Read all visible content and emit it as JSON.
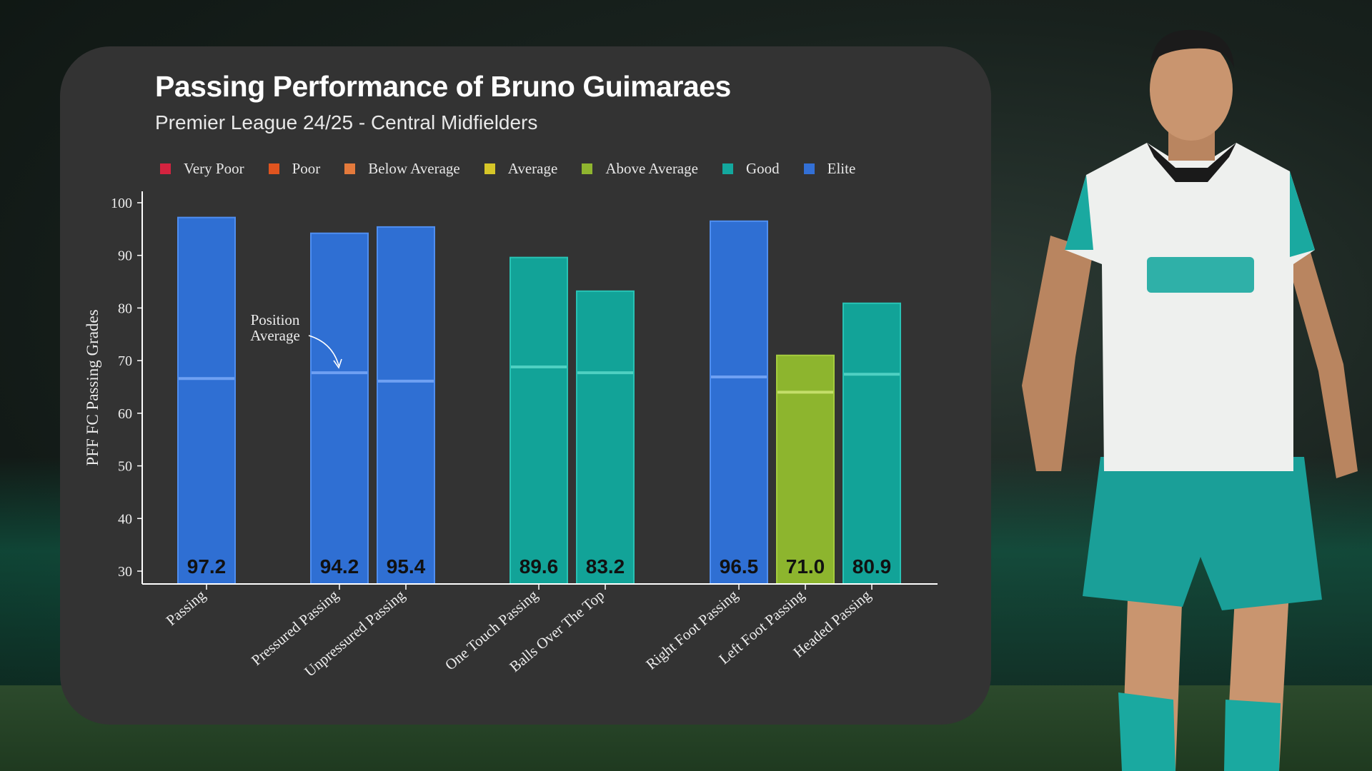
{
  "title": "Passing Performance of Bruno Guimaraes",
  "subtitle": "Premier League 24/25 - Central Midfielders",
  "legend": [
    {
      "label": "Very Poor",
      "color": "#d4233f"
    },
    {
      "label": "Poor",
      "color": "#e0541f"
    },
    {
      "label": "Below Average",
      "color": "#e47a3c"
    },
    {
      "label": "Average",
      "color": "#d6c628"
    },
    {
      "label": "Above Average",
      "color": "#8fb52f"
    },
    {
      "label": "Good",
      "color": "#13a89e"
    },
    {
      "label": "Elite",
      "color": "#3370d6"
    }
  ],
  "annotation": {
    "line1": "Position",
    "line2": "Average"
  },
  "chart_data": {
    "type": "bar",
    "ylabel": "PFF FC Passing Grades",
    "xlabel": "",
    "ylim": [
      30,
      100
    ],
    "yticks": [
      30,
      40,
      50,
      60,
      70,
      80,
      90,
      100
    ],
    "categories": [
      "Passing",
      "Pressured Passing",
      "Unpressured Passing",
      "One Touch Passing",
      "Balls Over The Top",
      "Right Foot Passing",
      "Left Foot Passing",
      "Headed Passing"
    ],
    "values": [
      97.2,
      94.2,
      95.4,
      89.6,
      83.2,
      96.5,
      71.0,
      80.9
    ],
    "value_labels": [
      "97.2",
      "94.2",
      "95.4",
      "89.6",
      "83.2",
      "96.5",
      "71.0",
      "80.9"
    ],
    "position_average": [
      66.6,
      67.7,
      66.1,
      68.8,
      67.7,
      66.9,
      64.0,
      67.4
    ],
    "tier": [
      "Elite",
      "Elite",
      "Elite",
      "Good",
      "Good",
      "Elite",
      "Above Average",
      "Good"
    ]
  },
  "colors": {
    "Elite": {
      "fill": "#2f6fd3",
      "stroke": "#4f8ef0",
      "avg": "#6fa0f2"
    },
    "Good": {
      "fill": "#12a398",
      "stroke": "#28c2b4",
      "avg": "#4fd0c2"
    },
    "Above Average": {
      "fill": "#8db52e",
      "stroke": "#a5cc3e",
      "avg": "#c4de6a"
    }
  }
}
